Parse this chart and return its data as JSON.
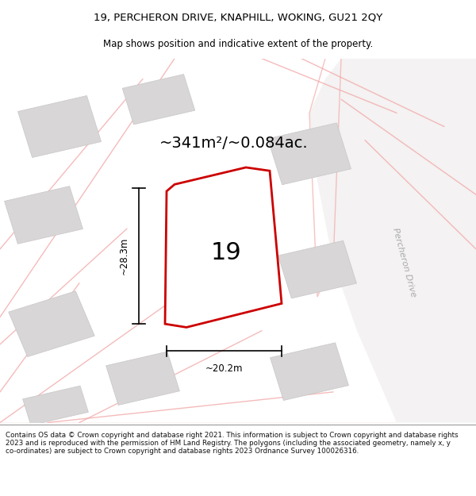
{
  "title_line1": "19, PERCHERON DRIVE, KNAPHILL, WOKING, GU21 2QY",
  "title_line2": "Map shows position and indicative extent of the property.",
  "area_text": "~341m²/~0.084ac.",
  "number_label": "19",
  "dim_width": "~20.2m",
  "dim_height": "~28.3m",
  "road_label": "Percheron Drive",
  "footer_text": "Contains OS data © Crown copyright and database right 2021. This information is subject to Crown copyright and database rights 2023 and is reproduced with the permission of HM Land Registry. The polygons (including the associated geometry, namely x, y co-ordinates) are subject to Crown copyright and database rights 2023 Ordnance Survey 100026316.",
  "map_bg": "#faf8f8",
  "building_fill": "#d8d6d6",
  "building_edge": "#c8c6c6",
  "road_line_color": "#f2aaaa",
  "road_area_fill": "#eeeaea",
  "property_line_color": "#cc0000",
  "road_label_color": "#aaaaaa",
  "title_fontsize": 9.5,
  "subtitle_fontsize": 8.5,
  "area_fontsize": 14,
  "number_fontsize": 22,
  "dim_fontsize": 8.5
}
